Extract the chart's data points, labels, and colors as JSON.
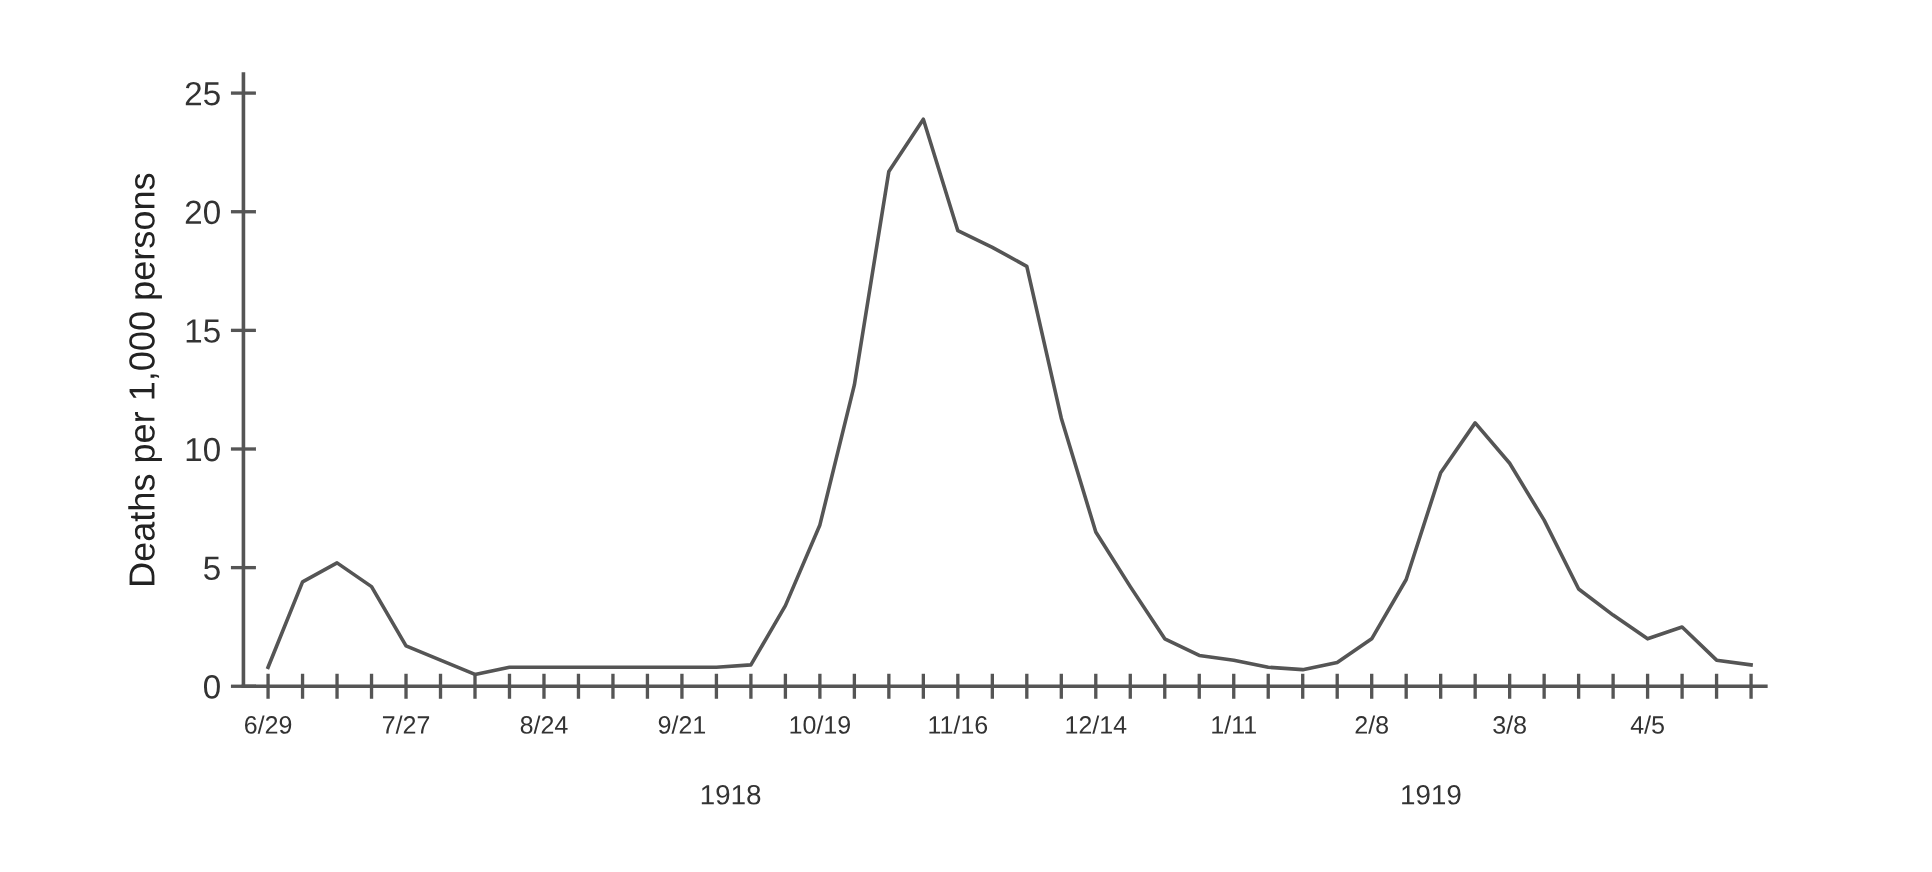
{
  "chart_data": {
    "type": "line",
    "ylabel": "Deaths per 1,000 persons",
    "x": [
      "1918-06-29",
      "1918-07-06",
      "1918-07-13",
      "1918-07-20",
      "1918-07-27",
      "1918-08-03",
      "1918-08-10",
      "1918-08-17",
      "1918-08-24",
      "1918-08-31",
      "1918-09-07",
      "1918-09-14",
      "1918-09-21",
      "1918-09-28",
      "1918-10-05",
      "1918-10-12",
      "1918-10-19",
      "1918-10-26",
      "1918-11-02",
      "1918-11-09",
      "1918-11-16",
      "1918-11-23",
      "1918-11-30",
      "1918-12-07",
      "1918-12-14",
      "1918-12-21",
      "1918-12-28",
      "1919-01-04",
      "1919-01-11",
      "1919-01-18",
      "1919-01-25",
      "1919-02-01",
      "1919-02-08",
      "1919-02-15",
      "1919-02-22",
      "1919-03-01",
      "1919-03-08",
      "1919-03-15",
      "1919-03-22",
      "1919-03-29",
      "1919-04-05",
      "1919-04-12",
      "1919-04-19",
      "1919-04-26"
    ],
    "series": [
      {
        "color": "#555555",
        "values": [
          0.8,
          4.4,
          5.2,
          4.2,
          1.7,
          1.1,
          0.5,
          0.8,
          0.8,
          0.8,
          0.8,
          0.8,
          0.8,
          0.8,
          0.9,
          3.4,
          6.8,
          12.7,
          21.7,
          23.9,
          19.2,
          18.5,
          17.7,
          11.3,
          6.5,
          4.2,
          2.0,
          1.3,
          1.1,
          0.8,
          0.7,
          1.0,
          2.0,
          4.5,
          9.0,
          11.1,
          9.4,
          7.0,
          4.1,
          3.0,
          2.0,
          2.5,
          1.1,
          0.9
        ]
      }
    ],
    "xlim": [
      "1918-06-24",
      "1919-04-29"
    ],
    "xticks": [
      {
        "value": "1918-06-29",
        "label": "6/29"
      },
      {
        "value": "1918-07-06",
        "label": null
      },
      {
        "value": "1918-07-13",
        "label": null
      },
      {
        "value": "1918-07-20",
        "label": null
      },
      {
        "value": "1918-07-27",
        "label": "7/27"
      },
      {
        "value": "1918-08-03",
        "label": null
      },
      {
        "value": "1918-08-10",
        "label": null
      },
      {
        "value": "1918-08-17",
        "label": null
      },
      {
        "value": "1918-08-24",
        "label": "8/24"
      },
      {
        "value": "1918-08-31",
        "label": null
      },
      {
        "value": "1918-09-07",
        "label": null
      },
      {
        "value": "1918-09-14",
        "label": null
      },
      {
        "value": "1918-09-21",
        "label": "9/21"
      },
      {
        "value": "1918-09-28",
        "label": null
      },
      {
        "value": "1918-10-05",
        "label": null
      },
      {
        "value": "1918-10-12",
        "label": null
      },
      {
        "value": "1918-10-19",
        "label": "10/19"
      },
      {
        "value": "1918-10-26",
        "label": null
      },
      {
        "value": "1918-11-02",
        "label": null
      },
      {
        "value": "1918-11-09",
        "label": null
      },
      {
        "value": "1918-11-16",
        "label": "11/16"
      },
      {
        "value": "1918-11-23",
        "label": null
      },
      {
        "value": "1918-11-30",
        "label": null
      },
      {
        "value": "1918-12-07",
        "label": null
      },
      {
        "value": "1918-12-14",
        "label": "12/14"
      },
      {
        "value": "1918-12-21",
        "label": null
      },
      {
        "value": "1918-12-28",
        "label": null
      },
      {
        "value": "1919-01-04",
        "label": null
      },
      {
        "value": "1919-01-11",
        "label": "1/11"
      },
      {
        "value": "1919-01-18",
        "label": null
      },
      {
        "value": "1919-01-25",
        "label": null
      },
      {
        "value": "1919-02-01",
        "label": null
      },
      {
        "value": "1919-02-08",
        "label": "2/8"
      },
      {
        "value": "1919-02-15",
        "label": null
      },
      {
        "value": "1919-02-22",
        "label": null
      },
      {
        "value": "1919-03-01",
        "label": null
      },
      {
        "value": "1919-03-08",
        "label": "3/8"
      },
      {
        "value": "1919-03-15",
        "label": null
      },
      {
        "value": "1919-03-22",
        "label": null
      },
      {
        "value": "1919-03-29",
        "label": null
      },
      {
        "value": "1919-04-05",
        "label": "4/5"
      },
      {
        "value": "1919-04-12",
        "label": null
      },
      {
        "value": "1919-04-19",
        "label": null
      },
      {
        "value": "1919-04-26",
        "label": null
      }
    ],
    "ylim": [
      0,
      25.8
    ],
    "yticks": [
      0,
      5,
      10,
      15,
      20,
      25
    ],
    "annotations": [
      "1918",
      "1919"
    ],
    "grid": false,
    "legend": false,
    "marker": "none",
    "line_style": "solid"
  }
}
